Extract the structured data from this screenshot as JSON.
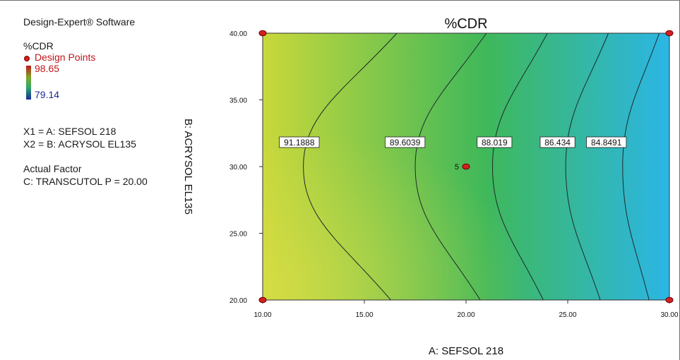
{
  "legend": {
    "software": "Design-Expert® Software",
    "response_name": "%CDR",
    "design_points_label": "Design Points",
    "scale_high": "98.65",
    "scale_low": "79.14",
    "x1_line": "X1 = A: SEFSOL 218",
    "x2_line": "X2 = B: ACRYSOL EL135",
    "actual_factor_label": "Actual Factor",
    "actual_factor_value": "C: TRANSCUTOL P = 20.00"
  },
  "colors": {
    "high": "#c0161c",
    "low": "#1d2a9e",
    "fill_left": "#c8d83a",
    "fill_mid": "#3fb85a",
    "fill_right": "#2bb6e6",
    "design_point": "#d42020"
  },
  "chart_data": {
    "type": "contour",
    "title": "%CDR",
    "xlabel": "A: SEFSOL 218",
    "ylabel": "B: ACRYSOL EL135",
    "xlim": [
      10,
      30
    ],
    "ylim": [
      20,
      40
    ],
    "x_ticks": [
      "10.00",
      "15.00",
      "20.00",
      "25.00",
      "30.00"
    ],
    "y_ticks": [
      "20.00",
      "25.00",
      "30.00",
      "35.00",
      "40.00"
    ],
    "contours": [
      {
        "level": "91.1888",
        "x_at_center": 12.0,
        "x_at_top": 16.6,
        "x_at_bottom": 16.3,
        "label_x": 11.8
      },
      {
        "level": "89.6039",
        "x_at_center": 17.5,
        "x_at_top": 21.0,
        "x_at_bottom": 20.7,
        "label_x": 17.0
      },
      {
        "level": "88.019",
        "x_at_center": 21.3,
        "x_at_top": 24.0,
        "x_at_bottom": 23.8,
        "label_x": 21.4
      },
      {
        "level": "86.434",
        "x_at_center": 24.9,
        "x_at_top": 27.0,
        "x_at_bottom": 26.6,
        "label_x": 24.5
      },
      {
        "level": "84.8491",
        "x_at_center": 27.7,
        "x_at_top": 29.5,
        "x_at_bottom": 29.0,
        "label_x": 26.9
      }
    ],
    "design_points": [
      {
        "x": 10,
        "y": 40
      },
      {
        "x": 30,
        "y": 40
      },
      {
        "x": 10,
        "y": 20
      },
      {
        "x": 30,
        "y": 20
      },
      {
        "x": 20,
        "y": 30,
        "label": "5"
      }
    ]
  }
}
